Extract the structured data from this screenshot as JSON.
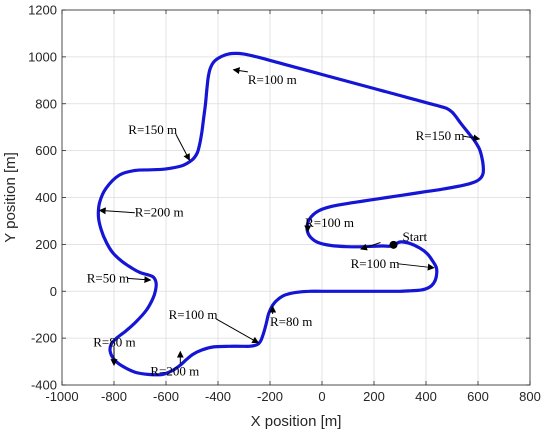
{
  "chart_data": {
    "type": "line",
    "title": "",
    "xlabel": "X position [m]",
    "ylabel": "Y position [m]",
    "xlim": [
      -1000,
      800
    ],
    "ylim": [
      -400,
      1200
    ],
    "xticks": [
      -1000,
      -800,
      -600,
      -400,
      -200,
      0,
      200,
      400,
      600,
      800
    ],
    "yticks": [
      -400,
      -200,
      0,
      200,
      400,
      600,
      800,
      1000,
      1200
    ],
    "grid": true,
    "series": [
      {
        "color": "#1515d6",
        "x": [
          275,
          300,
          335,
          375,
          405,
          425,
          440,
          440,
          430,
          410,
          380,
          340,
          300,
          250,
          200,
          150,
          100,
          50,
          0,
          -50,
          -100,
          -140,
          -170,
          -190,
          -205,
          -215,
          -225,
          -235,
          -245,
          -260,
          -280,
          -310,
          -360,
          -420,
          -460,
          -495,
          -520,
          -545,
          -575,
          -615,
          -665,
          -720,
          -770,
          -800,
          -815,
          -810,
          -790,
          -755,
          -715,
          -675,
          -650,
          -640,
          -638,
          -648,
          -670,
          -700,
          -730,
          -770,
          -805,
          -830,
          -850,
          -860,
          -855,
          -830,
          -780,
          -720,
          -660,
          -600,
          -540,
          -500,
          -480,
          -470,
          -462,
          -455,
          -448,
          -443,
          -438,
          -430,
          -415,
          -390,
          -360,
          -330,
          -300,
          -270,
          -240,
          -200,
          -150,
          -100,
          -50,
          0,
          50,
          100,
          150,
          200,
          250,
          300,
          350,
          400,
          450,
          480,
          500,
          515,
          535,
          560,
          585,
          605,
          615,
          620,
          620,
          612,
          595,
          565,
          520,
          460,
          400,
          340,
          280,
          220,
          160,
          100,
          40,
          -10,
          -40,
          -55,
          -57,
          -45,
          -15,
          35,
          100,
          160,
          200,
          235,
          258,
          272
        ],
        "y": [
          195,
          210,
          205,
          185,
          160,
          130,
          100,
          65,
          35,
          15,
          5,
          2,
          0,
          0,
          0,
          0,
          0,
          0,
          0,
          0,
          -5,
          -15,
          -35,
          -60,
          -95,
          -140,
          -180,
          -210,
          -225,
          -232,
          -235,
          -235,
          -235,
          -238,
          -250,
          -268,
          -290,
          -315,
          -338,
          -355,
          -355,
          -345,
          -318,
          -290,
          -255,
          -225,
          -200,
          -170,
          -130,
          -80,
          -30,
          5,
          35,
          60,
          70,
          80,
          98,
          128,
          165,
          210,
          265,
          320,
          380,
          440,
          495,
          515,
          518,
          522,
          535,
          560,
          590,
          630,
          680,
          740,
          800,
          860,
          910,
          950,
          980,
          1000,
          1012,
          1015,
          1012,
          1005,
          997,
          985,
          970,
          955,
          940,
          925,
          910,
          895,
          880,
          865,
          850,
          835,
          820,
          805,
          790,
          780,
          765,
          745,
          715,
          680,
          645,
          608,
          570,
          535,
          505,
          485,
          470,
          458,
          447,
          435,
          425,
          415,
          405,
          395,
          385,
          375,
          363,
          345,
          320,
          290,
          260,
          232,
          208,
          195,
          190,
          190,
          192,
          193,
          192,
          195
        ]
      }
    ],
    "start_marker": {
      "x": 275,
      "y": 198,
      "label": "Start"
    },
    "annotations": [
      {
        "text": "R=100 m",
        "x": -285,
        "y": 885,
        "ax": -340,
        "ay": 945
      },
      {
        "text": "R=150 m",
        "x": -745,
        "y": 670,
        "ax": -510,
        "ay": 560
      },
      {
        "text": "R=150 m",
        "x": 360,
        "y": 645,
        "ax": 605,
        "ay": 650
      },
      {
        "text": "R=200 m",
        "x": -720,
        "y": 318,
        "ax": -855,
        "ay": 345
      },
      {
        "text": "R=100 m",
        "x": -65,
        "y": 275,
        "ax": -55,
        "ay": 255
      },
      {
        "text": "R=100 m",
        "x": 110,
        "y": 100,
        "ax": 430,
        "ay": 100
      },
      {
        "text": "R=50 m",
        "x": -905,
        "y": 38,
        "ax": -660,
        "ay": 48
      },
      {
        "text": "R=100 m",
        "x": -590,
        "y": -118,
        "ax": -245,
        "ay": -220
      },
      {
        "text": "R=80 m",
        "x": -200,
        "y": -148,
        "ax": -190,
        "ay": -65
      },
      {
        "text": "R=80 m",
        "x": -880,
        "y": -235,
        "ax": -800,
        "ay": -315
      },
      {
        "text": "R=200 m",
        "x": -660,
        "y": -360,
        "ax": -545,
        "ay": -258
      },
      {
        "text": "",
        "x": 225,
        "y": 208,
        "ax": 150,
        "ay": 180
      }
    ]
  }
}
